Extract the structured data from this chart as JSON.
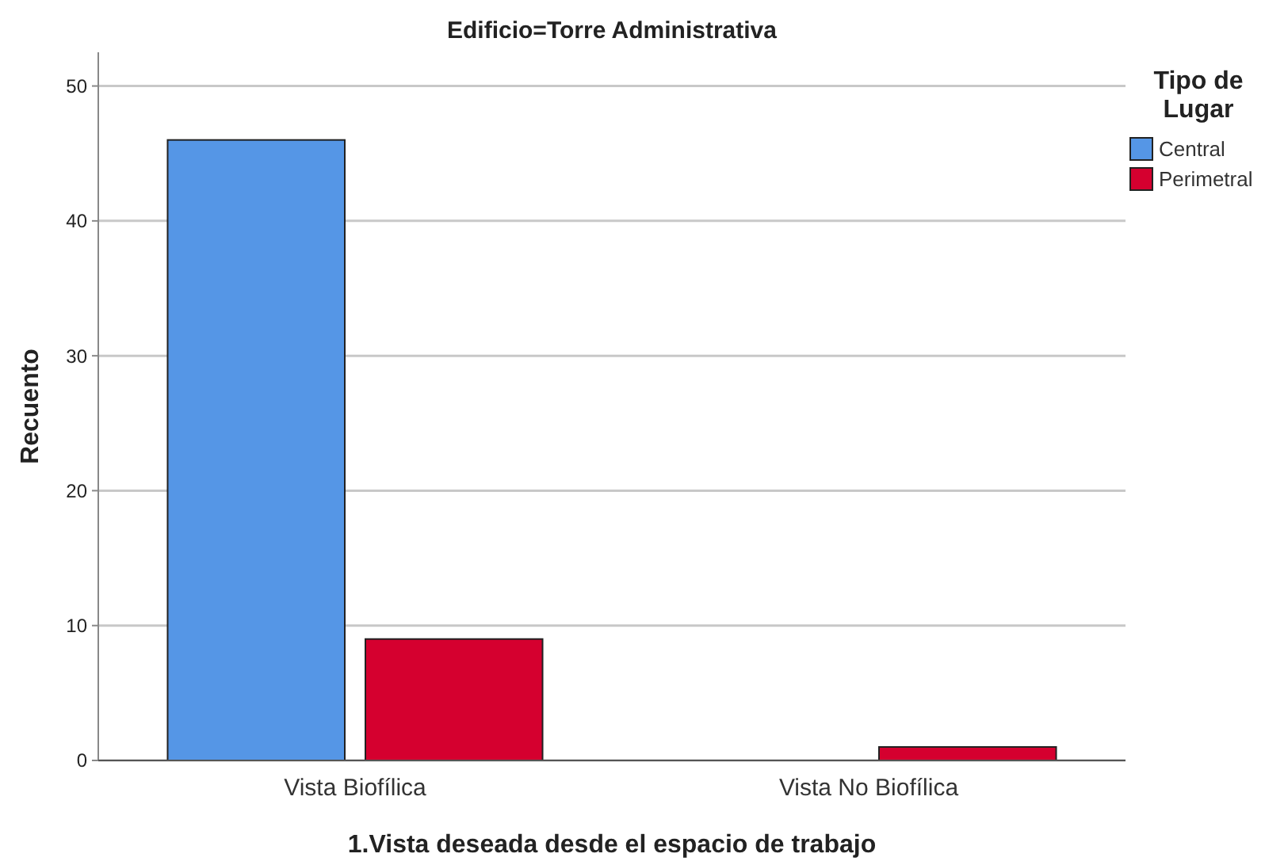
{
  "chart_data": {
    "type": "bar",
    "title": "Edificio=Torre Administrativa",
    "xlabel": "1.Vista deseada desde el espacio de trabajo",
    "ylabel": "Recuento",
    "legend_title": "Tipo de Lugar",
    "categories": [
      "Vista Biofílica",
      "Vista No Biofílica"
    ],
    "series": [
      {
        "name": "Central",
        "color": "#5596e6",
        "values": [
          46,
          null
        ]
      },
      {
        "name": "Perimetral",
        "color": "#d5002f",
        "values": [
          9,
          1
        ]
      }
    ],
    "ylim": [
      0,
      52.5
    ],
    "yticks": [
      0,
      10,
      20,
      30,
      40,
      50
    ],
    "grid": "y",
    "legend": "right"
  }
}
